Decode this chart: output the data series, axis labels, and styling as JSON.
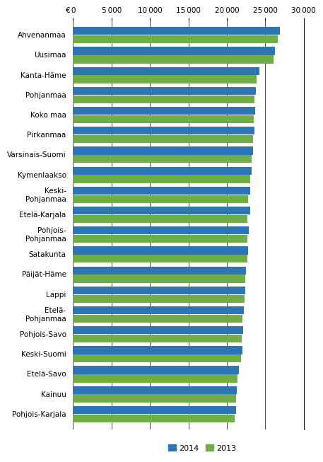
{
  "categories": [
    "Ahvenanmaa",
    "Uusimaa",
    "Kanta-Häme",
    "Pohjanmaa",
    "Koko maa",
    "Pirkanmaa",
    "Varsinais-Suomi",
    "Kymenlaakso",
    "Keski-\nPohjanmaa",
    "Etelä-Karjala",
    "Pohjois-\nPohjanmaa",
    "Satakunta",
    "Päijät-Häme",
    "Lappi",
    "Etelä-\nPohjanmaa",
    "Pohjois-Savo",
    "Keski-Suomi",
    "Etelä-Savo",
    "Kainuu",
    "Pohjois-Karjala"
  ],
  "values_2014": [
    26900,
    26300,
    24200,
    23800,
    23700,
    23600,
    23400,
    23200,
    23000,
    23000,
    22900,
    22800,
    22500,
    22400,
    22200,
    22100,
    22000,
    21600,
    21300,
    21200
  ],
  "values_2013": [
    26600,
    26100,
    23900,
    23600,
    23500,
    23400,
    23200,
    23000,
    22800,
    22700,
    22700,
    22700,
    22400,
    22300,
    22000,
    21900,
    21800,
    21400,
    21200,
    21000
  ],
  "color_2014": "#2E75B6",
  "color_2013": "#70AD47",
  "xlim": [
    0,
    30000
  ],
  "xticks": [
    0,
    5000,
    10000,
    15000,
    20000,
    25000,
    30000
  ],
  "euro_label": "€",
  "background_color": "#ffffff",
  "bar_height": 0.4,
  "bar_gap": 0.42,
  "legend_label_2014": "2014",
  "legend_label_2013": "2013",
  "label_fontsize": 7.5,
  "tick_fontsize": 7.5
}
